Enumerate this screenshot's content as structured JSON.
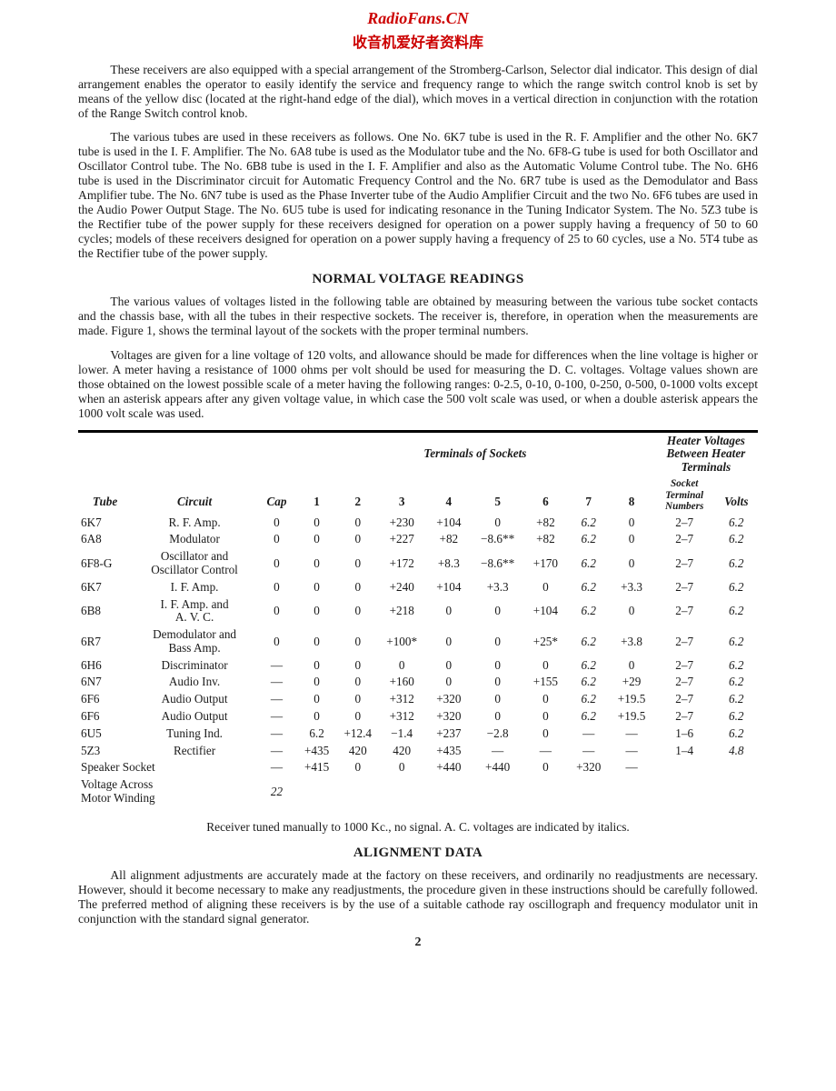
{
  "header": {
    "brand": "RadioFans.CN",
    "sub": "收音机爱好者资料库",
    "brand_color": "#cc0000",
    "sub_color": "#cc0000"
  },
  "paragraphs": {
    "p1": "These receivers are also equipped with a special arrangement of the Stromberg-Carlson, Selector dial indicator. This design of dial arrangement enables the operator to easily identify the service and frequency range to which the range switch control knob is set by means of the yellow disc (located at the right-hand edge of the dial), which moves in a vertical direction in conjunction with the rotation of the Range Switch control knob.",
    "p2": "The various tubes are used in these receivers as follows. One No. 6K7 tube is used in the R. F. Amplifier and the other No. 6K7 tube is used in the I. F. Amplifier. The No. 6A8 tube is used as the Modulator tube and the No. 6F8-G tube is used for both Oscillator and Oscillator Control tube. The No. 6B8 tube is used in the I. F. Amplifier and also as the Automatic Volume Control tube. The No. 6H6 tube is used in the Discriminator circuit for Automatic Frequency Control and the No. 6R7 tube is used as the Demodulator and Bass Amplifier tube. The No. 6N7 tube is used as the Phase Inverter tube of the Audio Amplifier Circuit and the two No. 6F6 tubes are used in the Audio Power Output Stage. The No. 6U5 tube is used for indicating resonance in the Tuning Indicator System. The No. 5Z3 tube is the Rectifier tube of the power supply for these receivers designed for operation on a power supply having a frequency of 50 to 60 cycles; models of these receivers designed for operation on a power supply having a frequency of 25 to 60 cycles, use a No. 5T4 tube as the Rectifier tube of the power supply.",
    "section1_title": "NORMAL VOLTAGE READINGS",
    "p3": "The various values of voltages listed in the following table are obtained by measuring between the various tube socket contacts and the chassis base, with all the tubes in their respective sockets. The receiver is, therefore, in operation when the measurements are made. Figure 1, shows the terminal layout of the sockets with the proper terminal numbers.",
    "p4": "Voltages are given for a line voltage of 120 volts, and allowance should be made for differences when the line voltage is higher or lower. A meter having a resistance of 1000 ohms per volt should be used for measuring the D. C. voltages. Voltage values shown are those obtained on the lowest possible scale of a meter having the following ranges: 0-2.5, 0-10, 0-100, 0-250, 0-500, 0-1000 volts except when an asterisk appears after any given voltage value, in which case the 500 volt scale was used, or when a double asterisk appears the 1000 volt scale was used.",
    "footnote": "Receiver tuned manually to 1000 Kc., no signal.  A. C. voltages are indicated by italics.",
    "section2_title": "ALIGNMENT DATA",
    "p5": "All alignment adjustments are accurately made at the factory on these receivers, and ordinarily no readjustments are necessary. However, should it become necessary to make any readjustments, the procedure given in these instructions should be carefully followed. The preferred method of aligning these receivers is by the use of a suitable cathode ray oscillograph and frequency modulator unit in conjunction with the standard signal generator.",
    "page_num": "2"
  },
  "table": {
    "terminals_header": "Terminals of Sockets",
    "heater_header_l1": "Heater Voltages",
    "heater_header_l2": "Between Heater",
    "heater_header_l3": "Terminals",
    "col_tube": "Tube",
    "col_circuit": "Circuit",
    "col_cap": "Cap",
    "cols_num": [
      "1",
      "2",
      "3",
      "4",
      "5",
      "6",
      "7",
      "8"
    ],
    "col_socket_l1": "Socket",
    "col_socket_l2": "Terminal",
    "col_socket_l3": "Numbers",
    "col_volts": "Volts",
    "rows": [
      {
        "tube": "6K7",
        "circuit": "R. F. Amp.",
        "cap": "0",
        "t": [
          "0",
          "0",
          "+230",
          "+104",
          "0",
          "+82",
          "6.2",
          "0"
        ],
        "stn": "2–7",
        "v": "6.2"
      },
      {
        "tube": "6A8",
        "circuit": "Modulator",
        "cap": "0",
        "t": [
          "0",
          "0",
          "+227",
          "+82",
          "−8.6**",
          "+82",
          "6.2",
          "0"
        ],
        "stn": "2–7",
        "v": "6.2"
      },
      {
        "tube": "6F8-G",
        "circuit": "Oscillator and\nOscillator Control",
        "cap": "0",
        "t": [
          "0",
          "0",
          "+172",
          "+8.3",
          "−8.6**",
          "+170",
          "6.2",
          "0"
        ],
        "stn": "2–7",
        "v": "6.2"
      },
      {
        "tube": "6K7",
        "circuit": "I. F. Amp.",
        "cap": "0",
        "t": [
          "0",
          "0",
          "+240",
          "+104",
          "+3.3",
          "0",
          "6.2",
          "+3.3"
        ],
        "stn": "2–7",
        "v": "6.2"
      },
      {
        "tube": "6B8",
        "circuit": "I. F. Amp. and\nA. V. C.",
        "cap": "0",
        "t": [
          "0",
          "0",
          "+218",
          "0",
          "0",
          "+104",
          "6.2",
          "0"
        ],
        "stn": "2–7",
        "v": "6.2"
      },
      {
        "tube": "6R7",
        "circuit": "Demodulator and\nBass Amp.",
        "cap": "0",
        "t": [
          "0",
          "0",
          "+100*",
          "0",
          "0",
          "+25*",
          "6.2",
          "+3.8"
        ],
        "stn": "2–7",
        "v": "6.2"
      },
      {
        "tube": "6H6",
        "circuit": "Discriminator",
        "cap": "—",
        "t": [
          "0",
          "0",
          "0",
          "0",
          "0",
          "0",
          "6.2",
          "0"
        ],
        "stn": "2–7",
        "v": "6.2"
      },
      {
        "tube": "6N7",
        "circuit": "Audio Inv.",
        "cap": "—",
        "t": [
          "0",
          "0",
          "+160",
          "0",
          "0",
          "+155",
          "6.2",
          "+29"
        ],
        "stn": "2–7",
        "v": "6.2"
      },
      {
        "tube": "6F6",
        "circuit": "Audio Output",
        "cap": "—",
        "t": [
          "0",
          "0",
          "+312",
          "+320",
          "0",
          "0",
          "6.2",
          "+19.5"
        ],
        "stn": "2–7",
        "v": "6.2"
      },
      {
        "tube": "6F6",
        "circuit": "Audio Output",
        "cap": "—",
        "t": [
          "0",
          "0",
          "+312",
          "+320",
          "0",
          "0",
          "6.2",
          "+19.5"
        ],
        "stn": "2–7",
        "v": "6.2"
      },
      {
        "tube": "6U5",
        "circuit": "Tuning Ind.",
        "cap": "—",
        "t": [
          "6.2",
          "+12.4",
          "−1.4",
          "+237",
          "−2.8",
          "0",
          "—",
          "—"
        ],
        "stn": "1–6",
        "v": "6.2"
      },
      {
        "tube": "5Z3",
        "circuit": "Rectifier",
        "cap": "—",
        "t": [
          "+435",
          "420",
          "420",
          "+435",
          "—",
          "—",
          "—",
          "—"
        ],
        "stn": "1–4",
        "v": "4.8"
      }
    ],
    "speaker_label": "Speaker Socket",
    "speaker_cap": "—",
    "speaker_t": [
      "+415",
      "0",
      "0",
      "+440",
      "+440",
      "0",
      "+320",
      "—"
    ],
    "motor_label": "Voltage Across\nMotor Winding",
    "motor_cap": "22",
    "italic_7": true,
    "font_size": 13.2,
    "border_color": "#000000"
  }
}
